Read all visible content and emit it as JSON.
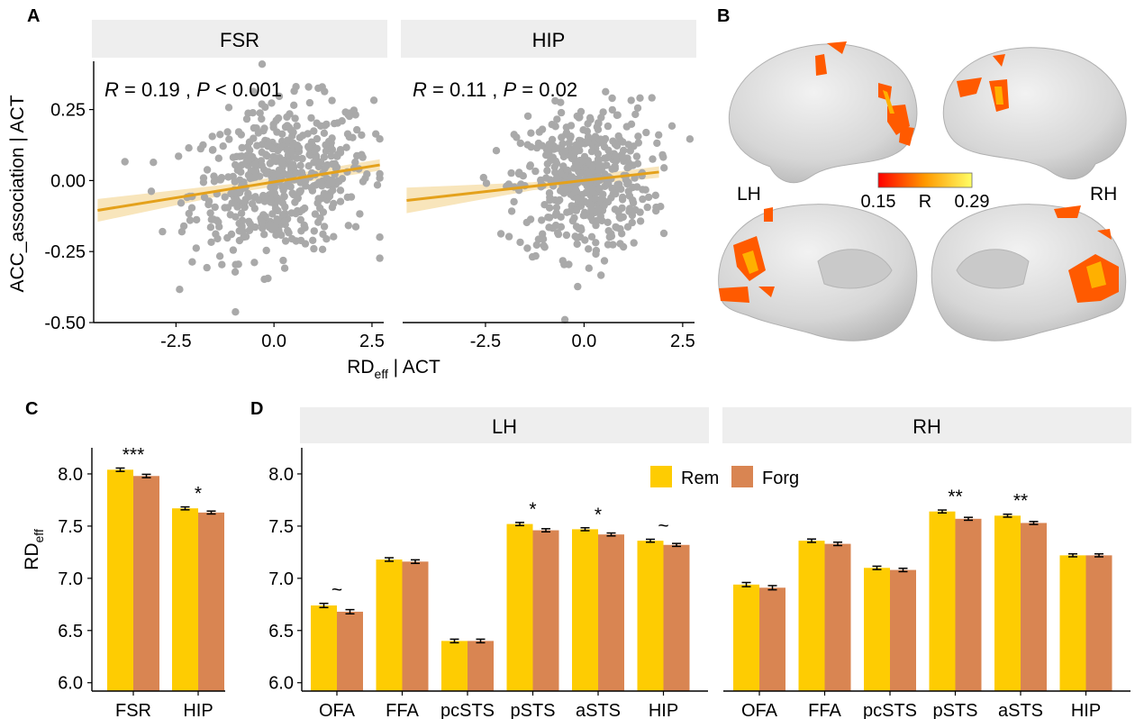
{
  "panel_letters": {
    "a": "A",
    "b": "B",
    "c": "C",
    "d": "D"
  },
  "colors": {
    "scatter_point": "#a9a9a9",
    "fit_line": "#e4a11b",
    "ci_band": "#f7e2b4",
    "strip_bg": "#eeeeee",
    "rem": "#fecc02",
    "forg": "#d98552",
    "brain_surface": "#d9d9d9",
    "activation_low": "#ff0000",
    "activation_high": "#ffff66"
  },
  "chart_data": [
    {
      "id": "A",
      "type": "scatter",
      "ylabel": "ACC_association | ACT",
      "xlabel": "RD",
      "xlabel_sub": "eff",
      "xlabel_tail": " | ACT",
      "xlim": [
        -4.6,
        2.8
      ],
      "ylim": [
        -0.5,
        0.42
      ],
      "yticks": [
        0.25,
        0.0,
        -0.25,
        -0.5
      ],
      "ytick_labels": [
        "0.25",
        "0.00",
        "-0.25",
        "-0.50"
      ],
      "xticks": [
        -2.5,
        0.0,
        2.5
      ],
      "xtick_labels": [
        "-2.5",
        "0.0",
        "2.5"
      ],
      "facets": [
        {
          "strip": "FSR",
          "stat_r": "R",
          "stat_r_val": " = 0.19 , ",
          "stat_p": "P",
          "stat_p_val": " < 0.001",
          "fit": {
            "x": [
              -4.5,
              2.7
            ],
            "y": [
              -0.105,
              0.055
            ]
          },
          "ci_halfwidth": [
            0.04,
            0.016,
            0.02
          ],
          "point_count": 520,
          "x_mean": 0.2,
          "x_sd": 1.15,
          "slope": 0.022,
          "resid_sd": 0.13
        },
        {
          "strip": "HIP",
          "stat_r": "R",
          "stat_r_val": " = 0.11 , ",
          "stat_p": "P",
          "stat_p_val": " = 0.02",
          "fit": {
            "x": [
              -4.5,
              1.9
            ],
            "y": [
              -0.07,
              0.03
            ]
          },
          "ci_halfwidth": [
            0.045,
            0.014,
            0.02
          ],
          "point_count": 480,
          "x_mean": 0.0,
          "x_sd": 0.85,
          "slope": 0.016,
          "resid_sd": 0.13
        }
      ]
    },
    {
      "id": "C",
      "type": "bar",
      "ylabel": "RD",
      "ylabel_sub": "eff",
      "ylim": [
        5.92,
        8.25
      ],
      "yticks": [
        6.0,
        6.5,
        7.0,
        7.5,
        8.0
      ],
      "ytick_labels": [
        "6.0",
        "6.5",
        "7.0",
        "7.5",
        "8.0"
      ],
      "categories": [
        "FSR",
        "HIP"
      ],
      "series": [
        {
          "name": "Rem",
          "values": [
            8.04,
            7.67
          ],
          "err": [
            0.016,
            0.014
          ]
        },
        {
          "name": "Forg",
          "values": [
            7.98,
            7.63
          ],
          "err": [
            0.016,
            0.014
          ]
        }
      ],
      "significance": [
        "***",
        "*"
      ]
    },
    {
      "id": "D",
      "type": "bar",
      "ylim": [
        5.92,
        8.25
      ],
      "yticks": [
        6.0,
        6.5,
        7.0,
        7.5,
        8.0
      ],
      "ytick_labels": [
        "6.0",
        "6.5",
        "7.0",
        "7.5",
        "8.0"
      ],
      "legend_placement": "top-center",
      "facets": [
        {
          "strip": "LH",
          "categories": [
            "OFA",
            "FFA",
            "pcSTS",
            "pSTS",
            "aSTS",
            "HIP"
          ],
          "series": [
            {
              "name": "Rem",
              "values": [
                6.74,
                7.18,
                6.4,
                7.52,
                7.47,
                7.36
              ],
              "err": [
                0.02,
                0.017,
                0.017,
                0.015,
                0.014,
                0.014
              ]
            },
            {
              "name": "Forg",
              "values": [
                6.68,
                7.16,
                6.4,
                7.46,
                7.42,
                7.32
              ],
              "err": [
                0.02,
                0.017,
                0.017,
                0.015,
                0.014,
                0.014
              ]
            }
          ],
          "significance": [
            "~",
            "",
            "",
            "*",
            "*",
            "~"
          ]
        },
        {
          "strip": "RH",
          "categories": [
            "OFA",
            "FFA",
            "pcSTS",
            "pSTS",
            "aSTS",
            "HIP"
          ],
          "series": [
            {
              "name": "Rem",
              "values": [
                6.94,
                7.36,
                7.1,
                7.64,
                7.6,
                7.22
              ],
              "err": [
                0.02,
                0.016,
                0.016,
                0.014,
                0.014,
                0.014
              ]
            },
            {
              "name": "Forg",
              "values": [
                6.91,
                7.33,
                7.08,
                7.57,
                7.53,
                7.22
              ],
              "err": [
                0.02,
                0.016,
                0.016,
                0.014,
                0.014,
                0.014
              ]
            }
          ],
          "significance": [
            "",
            "",
            "",
            "**",
            "**",
            ""
          ]
        }
      ]
    }
  ],
  "brain": {
    "left_label": "LH",
    "right_label": "RH",
    "colorbar_min": "0.15",
    "colorbar_max": "0.29",
    "colorbar_title": "R"
  }
}
